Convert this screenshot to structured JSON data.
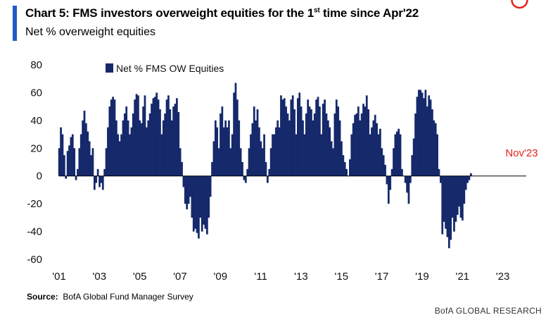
{
  "header": {
    "title_prefix": "Chart 5: FMS investors overweight equities for the 1",
    "title_sup": "st",
    "title_suffix": " time since Apr'22",
    "subtitle": "Net % overweight equities"
  },
  "footer": {
    "source_label": "Source:",
    "source_text": "BofA Global Fund Manager Survey",
    "brand": "BofA GLOBAL RESEARCH"
  },
  "colors": {
    "bar": "#15296b",
    "accent": "#1f5bc8",
    "highlight": "#e3211c"
  },
  "chart_data": {
    "type": "bar",
    "title": "Chart 5: FMS investors overweight equities for the 1st time since Apr'22",
    "subtitle": "Net % overweight equities",
    "xlabel": "",
    "ylabel": "",
    "ylim": [
      -60,
      80
    ],
    "yticks": [
      80,
      60,
      40,
      20,
      0,
      -20,
      -40,
      -60
    ],
    "xticks": [
      "'01",
      "'03",
      "'05",
      "'07",
      "'09",
      "'11",
      "'13",
      "'15",
      "'17",
      "'19",
      "'21",
      "'23"
    ],
    "x_range": [
      "2001-01",
      "2024-03"
    ],
    "legend": "top-left",
    "grid": false,
    "series": [
      {
        "name": "Net % FMS OW Equities",
        "start": "2001-01",
        "frequency": "monthly",
        "values": [
          20,
          35,
          30,
          15,
          -2,
          18,
          22,
          28,
          30,
          20,
          -3,
          5,
          20,
          30,
          40,
          47,
          38,
          32,
          25,
          15,
          20,
          -10,
          -5,
          5,
          -8,
          -5,
          -10,
          5,
          20,
          35,
          50,
          55,
          57,
          55,
          40,
          30,
          25,
          30,
          40,
          45,
          50,
          40,
          30,
          35,
          45,
          55,
          59,
          58,
          40,
          38,
          50,
          58,
          35,
          40,
          45,
          52,
          56,
          57,
          60,
          55,
          48,
          30,
          40,
          45,
          55,
          58,
          48,
          40,
          50,
          52,
          56,
          46,
          20,
          10,
          -8,
          -20,
          -24,
          -20,
          -15,
          -30,
          -40,
          -38,
          -41,
          -45,
          -30,
          -40,
          -35,
          -38,
          -42,
          -30,
          -15,
          10,
          25,
          40,
          35,
          20,
          45,
          50,
          35,
          40,
          35,
          40,
          20,
          30,
          60,
          67,
          55,
          40,
          20,
          10,
          -3,
          -5,
          5,
          20,
          30,
          38,
          50,
          40,
          48,
          35,
          25,
          20,
          30,
          10,
          -5,
          5,
          20,
          30,
          30,
          35,
          40,
          35,
          58,
          55,
          56,
          50,
          45,
          40,
          55,
          58,
          48,
          30,
          56,
          60,
          50,
          40,
          30,
          45,
          55,
          50,
          48,
          40,
          45,
          55,
          57,
          50,
          30,
          52,
          55,
          45,
          40,
          35,
          25,
          20,
          45,
          55,
          50,
          40,
          25,
          15,
          10,
          5,
          0,
          12,
          30,
          38,
          44,
          45,
          50,
          40,
          45,
          52,
          50,
          58,
          48,
          30,
          35,
          40,
          44,
          38,
          30,
          34,
          20,
          15,
          8,
          -6,
          -20,
          -10,
          5,
          20,
          30,
          32,
          34,
          30,
          5,
          0,
          -5,
          -12,
          -20,
          -5,
          15,
          27,
          45,
          57,
          62,
          62,
          60,
          56,
          62,
          50,
          58,
          55,
          48,
          40,
          38,
          30,
          5,
          -5,
          -42,
          -33,
          -38,
          -44,
          -52,
          -46,
          -30,
          -40,
          -33,
          -28,
          -22,
          -30,
          -32,
          -20,
          -10,
          -5,
          -3,
          2
        ]
      }
    ],
    "annotations": [
      {
        "text": "Nov'23",
        "at": "2023-11"
      }
    ]
  }
}
